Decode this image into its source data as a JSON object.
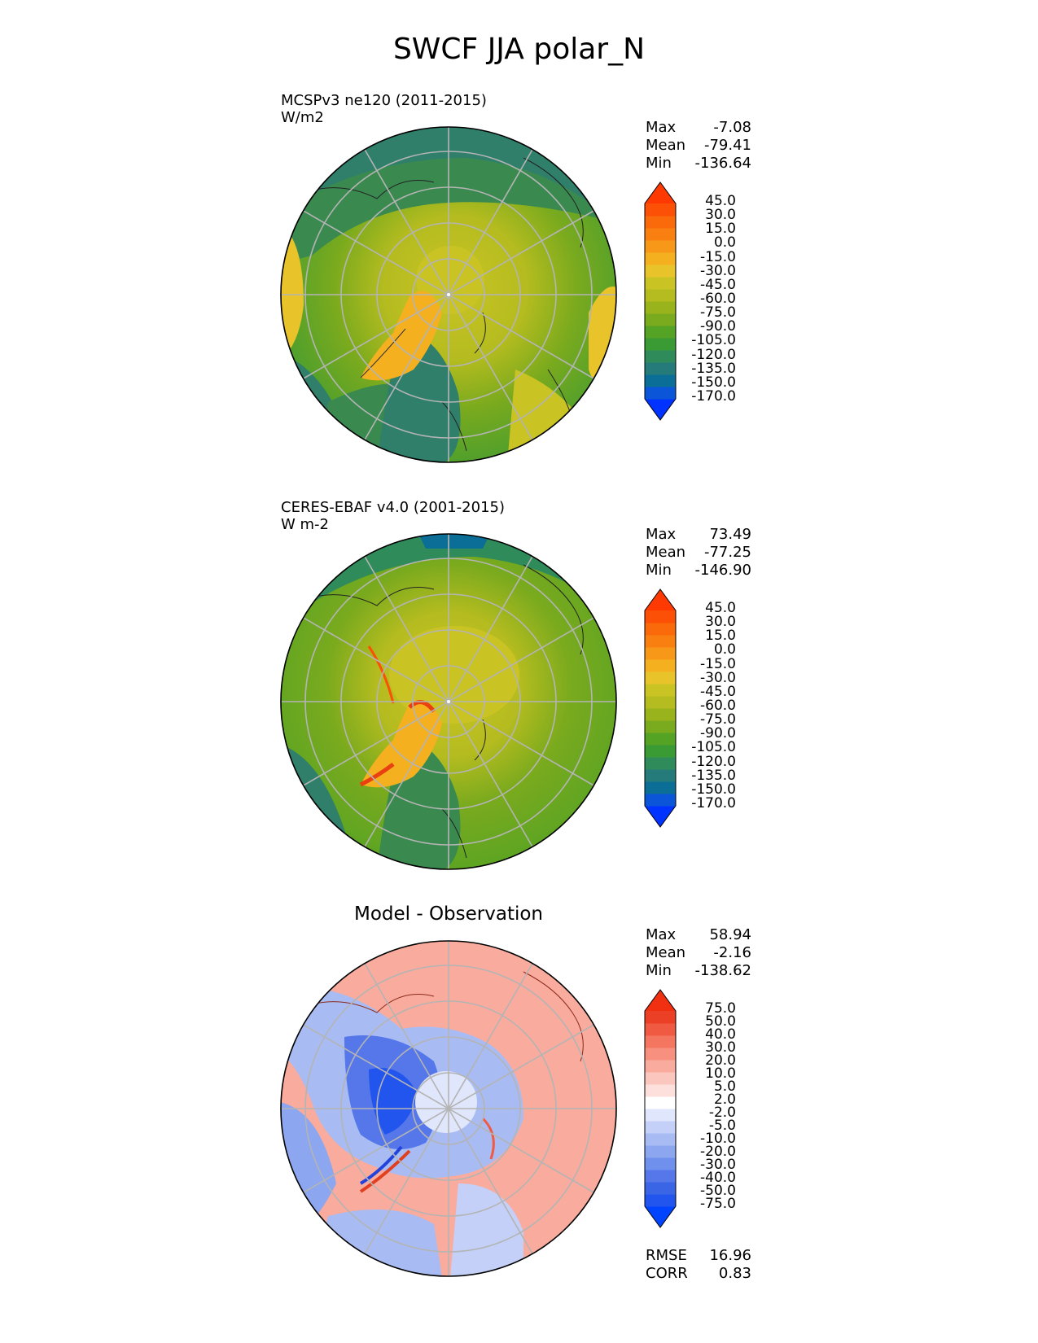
{
  "title": "SWCF JJA polar_N",
  "panels": [
    {
      "name": "model",
      "line1": "MCSPv3 ne120 (2011-2015)",
      "line2": "W/m2",
      "stats": {
        "max_label": "Max",
        "max": "-7.08",
        "mean_label": "Mean",
        "mean": "-79.41",
        "min_label": "Min",
        "min": "-136.64"
      },
      "colorbar_labels": [
        "45.0",
        "30.0",
        "15.0",
        "0.0",
        "-15.0",
        "-30.0",
        "-45.0",
        "-60.0",
        "-75.0",
        "-90.0",
        "-105.0",
        "-120.0",
        "-135.0",
        "-150.0",
        "-170.0"
      ],
      "colorbar_colors": [
        "#0033ff",
        "#0b55d9",
        "#0b6e96",
        "#257a7a",
        "#2f8c5a",
        "#3a9a33",
        "#55a324",
        "#7aaa1e",
        "#99b31c",
        "#b5bc1f",
        "#c9c324",
        "#e8c42a",
        "#f5b020",
        "#f89818",
        "#f98010",
        "#fa6a0a",
        "#fb5006",
        "#fe3a02"
      ]
    },
    {
      "name": "observation",
      "line1": "CERES-EBAF v4.0 (2001-2015)",
      "line2": "W m-2",
      "stats": {
        "max_label": "Max",
        "max": "73.49",
        "mean_label": "Mean",
        "mean": "-77.25",
        "min_label": "Min",
        "min": "-146.90"
      },
      "colorbar_labels": [
        "45.0",
        "30.0",
        "15.0",
        "0.0",
        "-15.0",
        "-30.0",
        "-45.0",
        "-60.0",
        "-75.0",
        "-90.0",
        "-105.0",
        "-120.0",
        "-135.0",
        "-150.0",
        "-170.0"
      ],
      "colorbar_colors": [
        "#0033ff",
        "#0b55d9",
        "#0b6e96",
        "#257a7a",
        "#2f8c5a",
        "#3a9a33",
        "#55a324",
        "#7aaa1e",
        "#99b31c",
        "#b5bc1f",
        "#c9c324",
        "#e8c42a",
        "#f5b020",
        "#f89818",
        "#f98010",
        "#fa6a0a",
        "#fb5006",
        "#fe3a02"
      ]
    },
    {
      "name": "difference",
      "center_title": "Model - Observation",
      "stats": {
        "max_label": "Max",
        "max": "58.94",
        "mean_label": "Mean",
        "mean": "-2.16",
        "min_label": "Min",
        "min": "-138.62"
      },
      "colorbar_labels": [
        "75.0",
        "50.0",
        "40.0",
        "30.0",
        "20.0",
        "10.0",
        "5.0",
        "2.0",
        "-2.0",
        "-5.0",
        "-10.0",
        "-20.0",
        "-30.0",
        "-40.0",
        "-50.0",
        "-75.0"
      ],
      "colorbar_colors": [
        "#0044ff",
        "#2255ee",
        "#3a66e6",
        "#5577ea",
        "#7090ee",
        "#8ca6f0",
        "#a8bcf3",
        "#c4d0f7",
        "#e0e6fb",
        "#ffffff",
        "#fde0dc",
        "#fbc6bd",
        "#f9ab9d",
        "#f7907e",
        "#f47660",
        "#f05a42",
        "#ec4026",
        "#f03010"
      ],
      "metrics": {
        "rmse_label": "RMSE",
        "rmse": "16.96",
        "corr_label": "CORR",
        "corr": "0.83"
      }
    }
  ]
}
